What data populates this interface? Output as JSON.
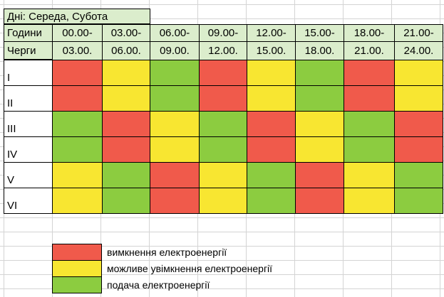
{
  "title": "Дні: Середа, Субота",
  "header": {
    "hours_label": "Години",
    "queues_label": "Черги",
    "start_times": [
      "00.00-",
      "03.00-",
      "06.00-",
      "09.00-",
      "12.00-",
      "15.00-",
      "18.00-",
      "21.00-"
    ],
    "end_times": [
      "03.00.",
      "06.00.",
      "09.00.",
      "12.00.",
      "15.00.",
      "18.00.",
      "21.00.",
      "24.00."
    ]
  },
  "colors": {
    "red": "#f05a4b",
    "yellow": "#f8e631",
    "green": "#8ccc40",
    "header_bg": "#dbedcc"
  },
  "rows": [
    {
      "label": "I",
      "cells": [
        "red",
        "yellow",
        "green",
        "red",
        "yellow",
        "green",
        "red",
        "yellow"
      ]
    },
    {
      "label": "II",
      "cells": [
        "red",
        "yellow",
        "green",
        "red",
        "yellow",
        "green",
        "red",
        "yellow"
      ]
    },
    {
      "label": "III",
      "cells": [
        "green",
        "red",
        "yellow",
        "green",
        "red",
        "yellow",
        "green",
        "red"
      ]
    },
    {
      "label": "IV",
      "cells": [
        "green",
        "red",
        "yellow",
        "green",
        "red",
        "yellow",
        "green",
        "red"
      ]
    },
    {
      "label": "V",
      "cells": [
        "yellow",
        "green",
        "red",
        "yellow",
        "green",
        "red",
        "yellow",
        "green"
      ]
    },
    {
      "label": "VI",
      "cells": [
        "yellow",
        "green",
        "red",
        "yellow",
        "green",
        "red",
        "yellow",
        "green"
      ]
    }
  ],
  "legend": [
    {
      "color": "red",
      "text": "вимкнення електроенергії"
    },
    {
      "color": "yellow",
      "text": "можливе увімкнення електроенергії"
    },
    {
      "color": "green",
      "text": "подача електроенергії"
    }
  ]
}
